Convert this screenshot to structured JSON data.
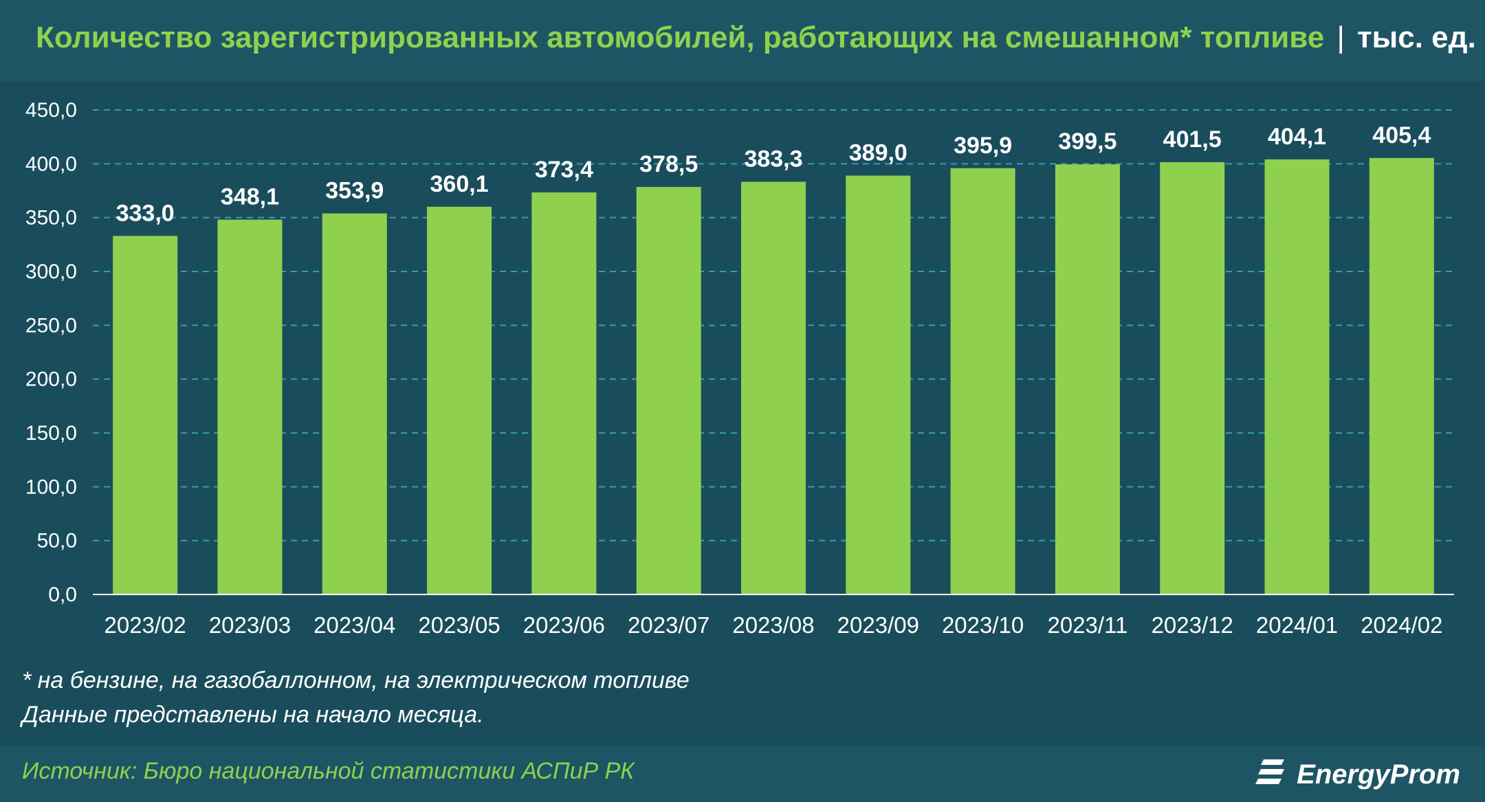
{
  "header": {
    "title": "Количество зарегистрированных автомобилей, работающих на смешанном* топливе",
    "separator": "|",
    "unit": "тыс. ед."
  },
  "chart_data": {
    "type": "bar",
    "categories": [
      "2023/02",
      "2023/03",
      "2023/04",
      "2023/05",
      "2023/06",
      "2023/07",
      "2023/08",
      "2023/09",
      "2023/10",
      "2023/11",
      "2023/12",
      "2024/01",
      "2024/02"
    ],
    "values": [
      333.0,
      348.1,
      353.9,
      360.1,
      373.4,
      378.5,
      383.3,
      389.0,
      395.9,
      399.5,
      401.5,
      404.1,
      405.4
    ],
    "value_labels": [
      "333,0",
      "348,1",
      "353,9",
      "360,1",
      "373,4",
      "378,5",
      "383,3",
      "389,0",
      "395,9",
      "399,5",
      "401,5",
      "404,1",
      "405,4"
    ],
    "ylim": [
      0,
      450
    ],
    "yticks": [
      "0,0",
      "50,0",
      "100,0",
      "150,0",
      "200,0",
      "250,0",
      "300,0",
      "350,0",
      "400,0",
      "450,0"
    ],
    "grid": true,
    "bar_color": "#8fd14f",
    "grid_color": "#3a9bb0",
    "text_color": "#ffffff"
  },
  "footnotes": {
    "note1": "* на бензине, на газобаллонном, на электрическом топливе",
    "note2": "Данные представлены на начало месяца."
  },
  "footer": {
    "source": "Источник: Бюро национальной статистики АСПиР РК",
    "logo_text": "EnergyProm",
    "logo_icon": "energyprom-logo-icon"
  },
  "colors": {
    "background": "#1a4d5c",
    "band": "#1e5564",
    "accent": "#8fd14f"
  }
}
